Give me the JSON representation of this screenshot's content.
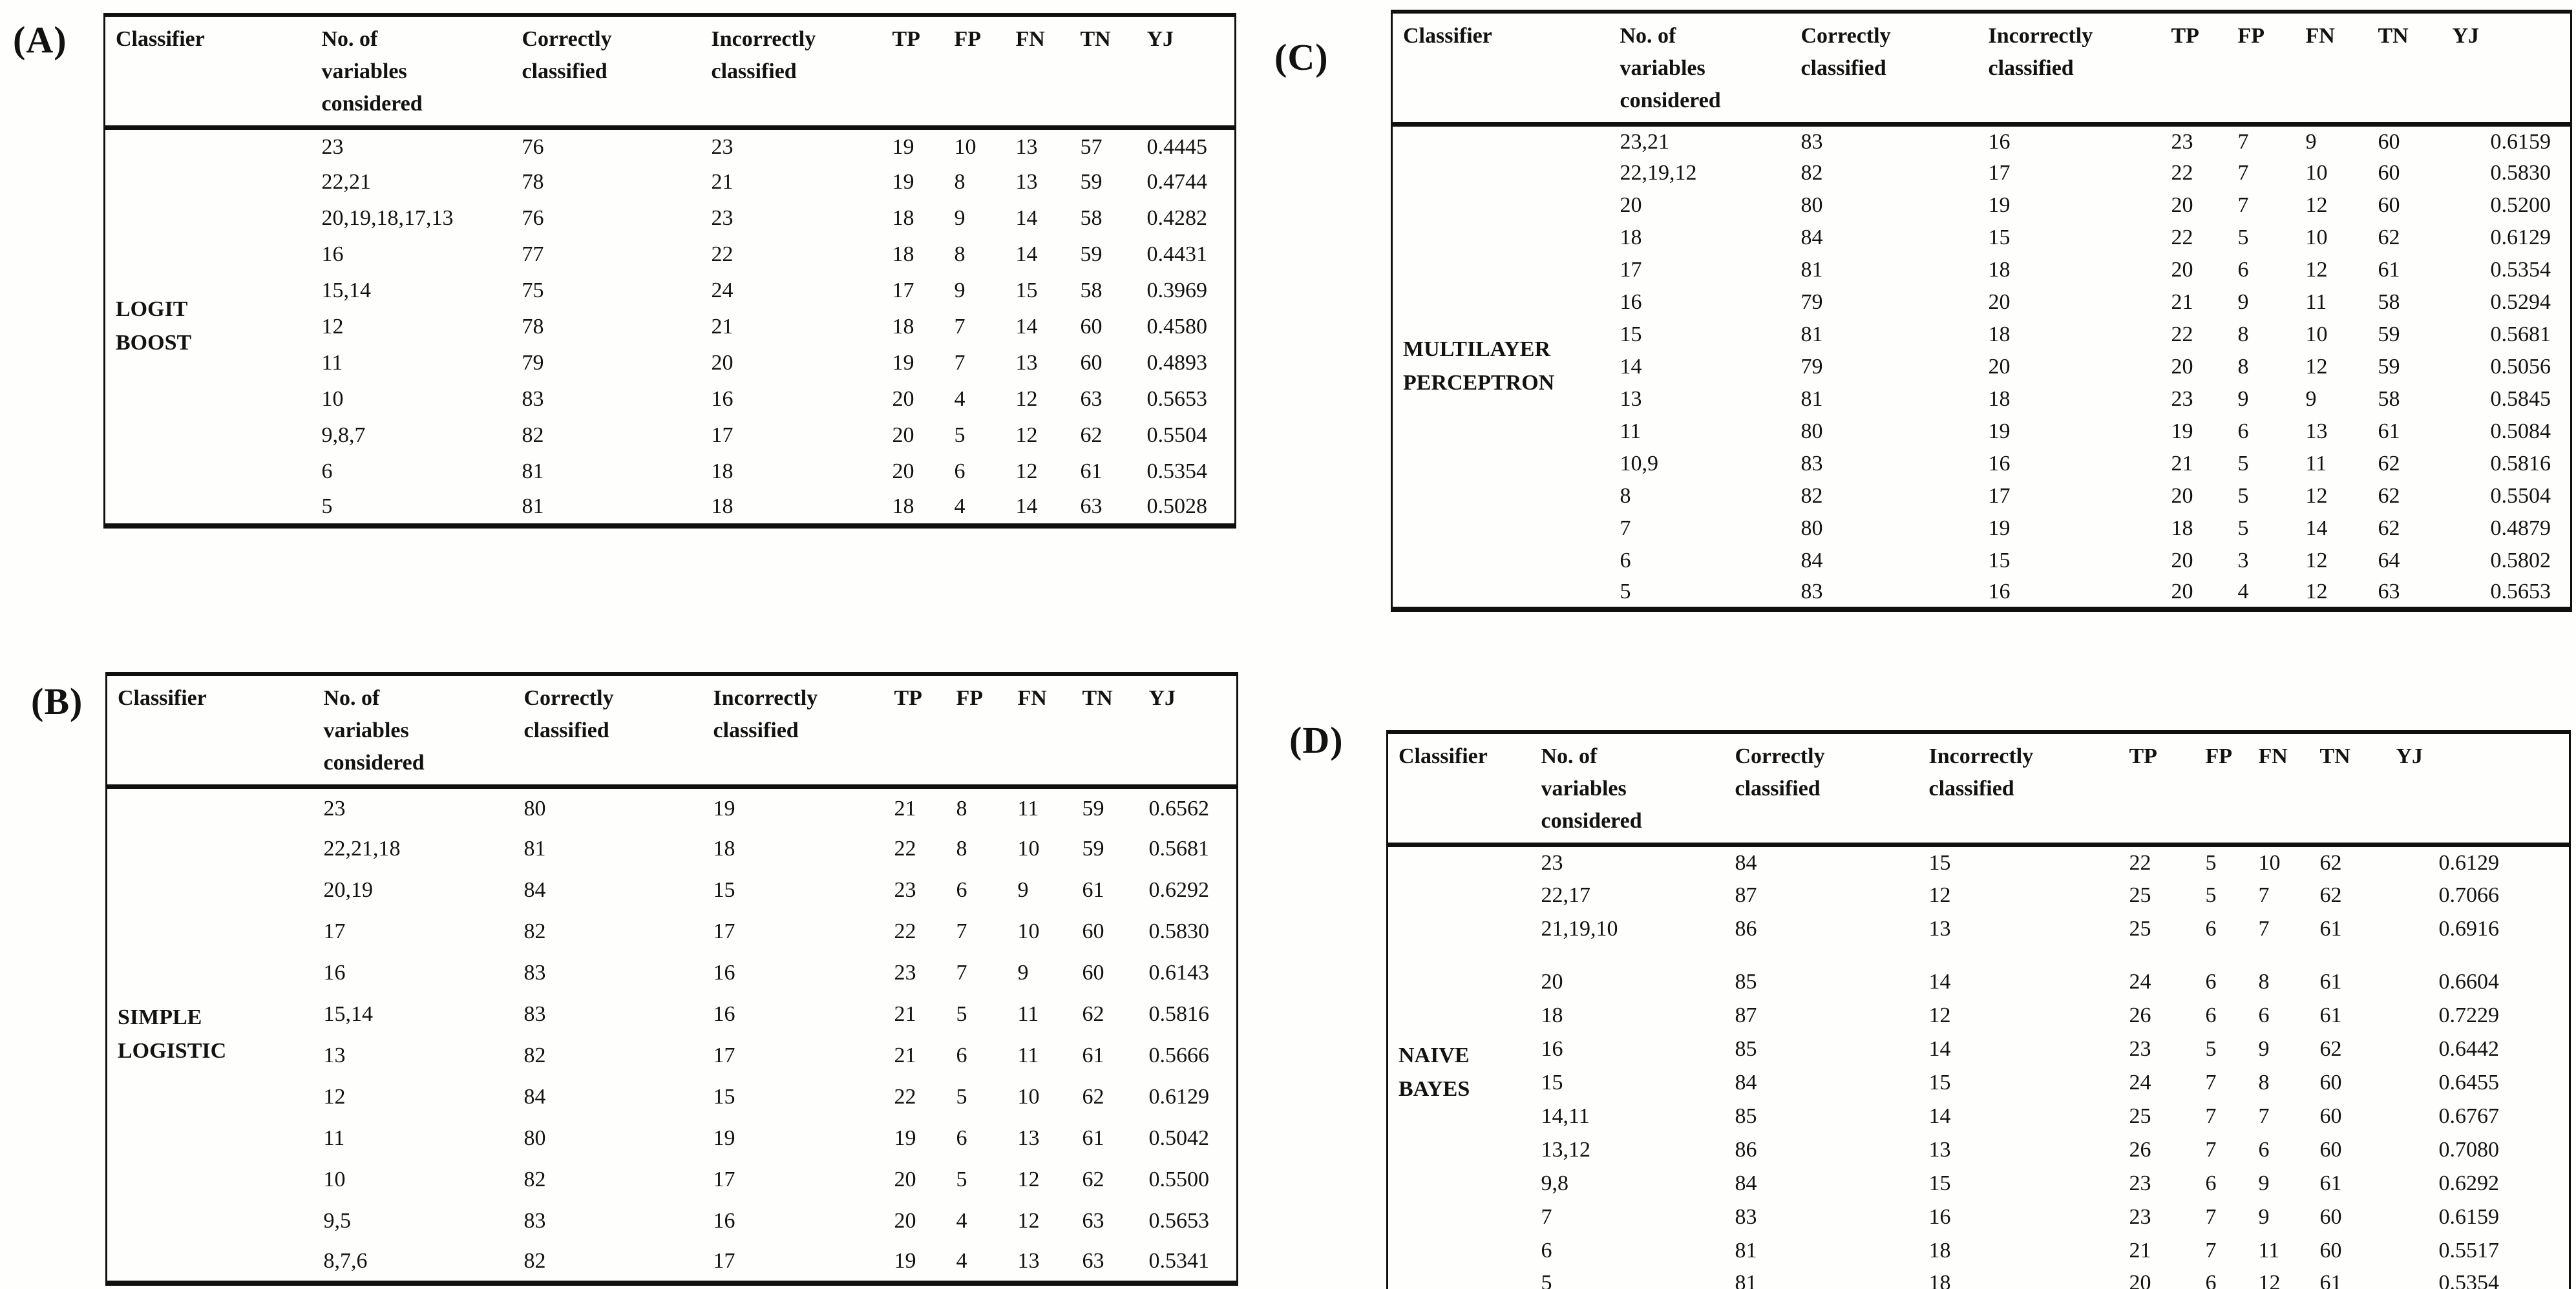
{
  "figure": {
    "background": "#fefefd",
    "text_color": "#121212"
  },
  "columns": [
    "Classifier",
    "No. of variables considered",
    "Correctly classified",
    "Incorrectly classified",
    "TP",
    "FP",
    "FN",
    "TN",
    "YJ"
  ],
  "tables": [
    {
      "label": "(A)",
      "classifier": "LOGIT BOOST",
      "rows": [
        [
          "23",
          "76",
          "23",
          "19",
          "10",
          "13",
          "57",
          "0.4445"
        ],
        [
          "22,21",
          "78",
          "21",
          "19",
          "8",
          "13",
          "59",
          "0.4744"
        ],
        [
          "20,19,18,17,13",
          "76",
          "23",
          "18",
          "9",
          "14",
          "58",
          "0.4282"
        ],
        [
          "16",
          "77",
          "22",
          "18",
          "8",
          "14",
          "59",
          "0.4431"
        ],
        [
          "15,14",
          "75",
          "24",
          "17",
          "9",
          "15",
          "58",
          "0.3969"
        ],
        [
          "12",
          "78",
          "21",
          "18",
          "7",
          "14",
          "60",
          "0.4580"
        ],
        [
          "11",
          "79",
          "20",
          "19",
          "7",
          "13",
          "60",
          "0.4893"
        ],
        [
          "10",
          "83",
          "16",
          "20",
          "4",
          "12",
          "63",
          "0.5653"
        ],
        [
          "9,8,7",
          "82",
          "17",
          "20",
          "5",
          "12",
          "62",
          "0.5504"
        ],
        [
          "6",
          "81",
          "18",
          "20",
          "6",
          "12",
          "61",
          "0.5354"
        ],
        [
          "5",
          "81",
          "18",
          "18",
          "4",
          "14",
          "63",
          "0.5028"
        ]
      ]
    },
    {
      "label": "(B)",
      "classifier": "SIMPLE LOGISTIC",
      "rows": [
        [
          "23",
          "80",
          "19",
          "21",
          "8",
          "11",
          "59",
          "0.6562"
        ],
        [
          "22,21,18",
          "81",
          "18",
          "22",
          "8",
          "10",
          "59",
          "0.5681"
        ],
        [
          "20,19",
          "84",
          "15",
          "23",
          "6",
          "9",
          "61",
          "0.6292"
        ],
        [
          "17",
          "82",
          "17",
          "22",
          "7",
          "10",
          "60",
          "0.5830"
        ],
        [
          "16",
          "83",
          "16",
          "23",
          "7",
          "9",
          "60",
          "0.6143"
        ],
        [
          "15,14",
          "83",
          "16",
          "21",
          "5",
          "11",
          "62",
          "0.5816"
        ],
        [
          "13",
          "82",
          "17",
          "21",
          "6",
          "11",
          "61",
          "0.5666"
        ],
        [
          "12",
          "84",
          "15",
          "22",
          "5",
          "10",
          "62",
          "0.6129"
        ],
        [
          "11",
          "80",
          "19",
          "19",
          "6",
          "13",
          "61",
          "0.5042"
        ],
        [
          "10",
          "82",
          "17",
          "20",
          "5",
          "12",
          "62",
          "0.5500"
        ],
        [
          "9,5",
          "83",
          "16",
          "20",
          "4",
          "12",
          "63",
          "0.5653"
        ],
        [
          "8,7,6",
          "82",
          "17",
          "19",
          "4",
          "13",
          "63",
          "0.5341"
        ]
      ]
    },
    {
      "label": "(C)",
      "classifier": "MULTILAYER PERCEPTRON",
      "rows": [
        [
          "23,21",
          "83",
          "16",
          "23",
          "7",
          "9",
          "60",
          "0.6159"
        ],
        [
          "22,19,12",
          "82",
          "17",
          "22",
          "7",
          "10",
          "60",
          "0.5830"
        ],
        [
          "20",
          "80",
          "19",
          "20",
          "7",
          "12",
          "60",
          "0.5200"
        ],
        [
          "18",
          "84",
          "15",
          "22",
          "5",
          "10",
          "62",
          "0.6129"
        ],
        [
          "17",
          "81",
          "18",
          "20",
          "6",
          "12",
          "61",
          "0.5354"
        ],
        [
          "16",
          "79",
          "20",
          "21",
          "9",
          "11",
          "58",
          "0.5294"
        ],
        [
          "15",
          "81",
          "18",
          "22",
          "8",
          "10",
          "59",
          "0.5681"
        ],
        [
          "14",
          "79",
          "20",
          "20",
          "8",
          "12",
          "59",
          "0.5056"
        ],
        [
          "13",
          "81",
          "18",
          "23",
          "9",
          "9",
          "58",
          "0.5845"
        ],
        [
          "11",
          "80",
          "19",
          "19",
          "6",
          "13",
          "61",
          "0.5084"
        ],
        [
          "10,9",
          "83",
          "16",
          "21",
          "5",
          "11",
          "62",
          "0.5816"
        ],
        [
          "8",
          "82",
          "17",
          "20",
          "5",
          "12",
          "62",
          "0.5504"
        ],
        [
          "7",
          "80",
          "19",
          "18",
          "5",
          "14",
          "62",
          "0.4879"
        ],
        [
          "6",
          "84",
          "15",
          "20",
          "3",
          "12",
          "64",
          "0.5802"
        ],
        [
          "5",
          "83",
          "16",
          "20",
          "4",
          "12",
          "63",
          "0.5653"
        ]
      ]
    },
    {
      "label": "(D)",
      "classifier": "NAIVE BAYES",
      "spacer_after_row": 3,
      "rows": [
        [
          "23",
          "84",
          "15",
          "22",
          "5",
          "10",
          "62",
          "0.6129"
        ],
        [
          "22,17",
          "87",
          "12",
          "25",
          "5",
          "7",
          "62",
          "0.7066"
        ],
        [
          "21,19,10",
          "86",
          "13",
          "25",
          "6",
          "7",
          "61",
          "0.6916"
        ],
        [
          "20",
          "85",
          "14",
          "24",
          "6",
          "8",
          "61",
          "0.6604"
        ],
        [
          "18",
          "87",
          "12",
          "26",
          "6",
          "6",
          "61",
          "0.7229"
        ],
        [
          "16",
          "85",
          "14",
          "23",
          "5",
          "9",
          "62",
          "0.6442"
        ],
        [
          "15",
          "84",
          "15",
          "24",
          "7",
          "8",
          "60",
          "0.6455"
        ],
        [
          "14,11",
          "85",
          "14",
          "25",
          "7",
          "7",
          "60",
          "0.6767"
        ],
        [
          "13,12",
          "86",
          "13",
          "26",
          "7",
          "6",
          "60",
          "0.7080"
        ],
        [
          "9,8",
          "84",
          "15",
          "23",
          "6",
          "9",
          "61",
          "0.6292"
        ],
        [
          "7",
          "83",
          "16",
          "23",
          "7",
          "9",
          "60",
          "0.6159"
        ],
        [
          "6",
          "81",
          "18",
          "21",
          "7",
          "11",
          "60",
          "0.5517"
        ],
        [
          "5",
          "81",
          "18",
          "20",
          "6",
          "12",
          "61",
          "0.5354"
        ]
      ]
    }
  ]
}
